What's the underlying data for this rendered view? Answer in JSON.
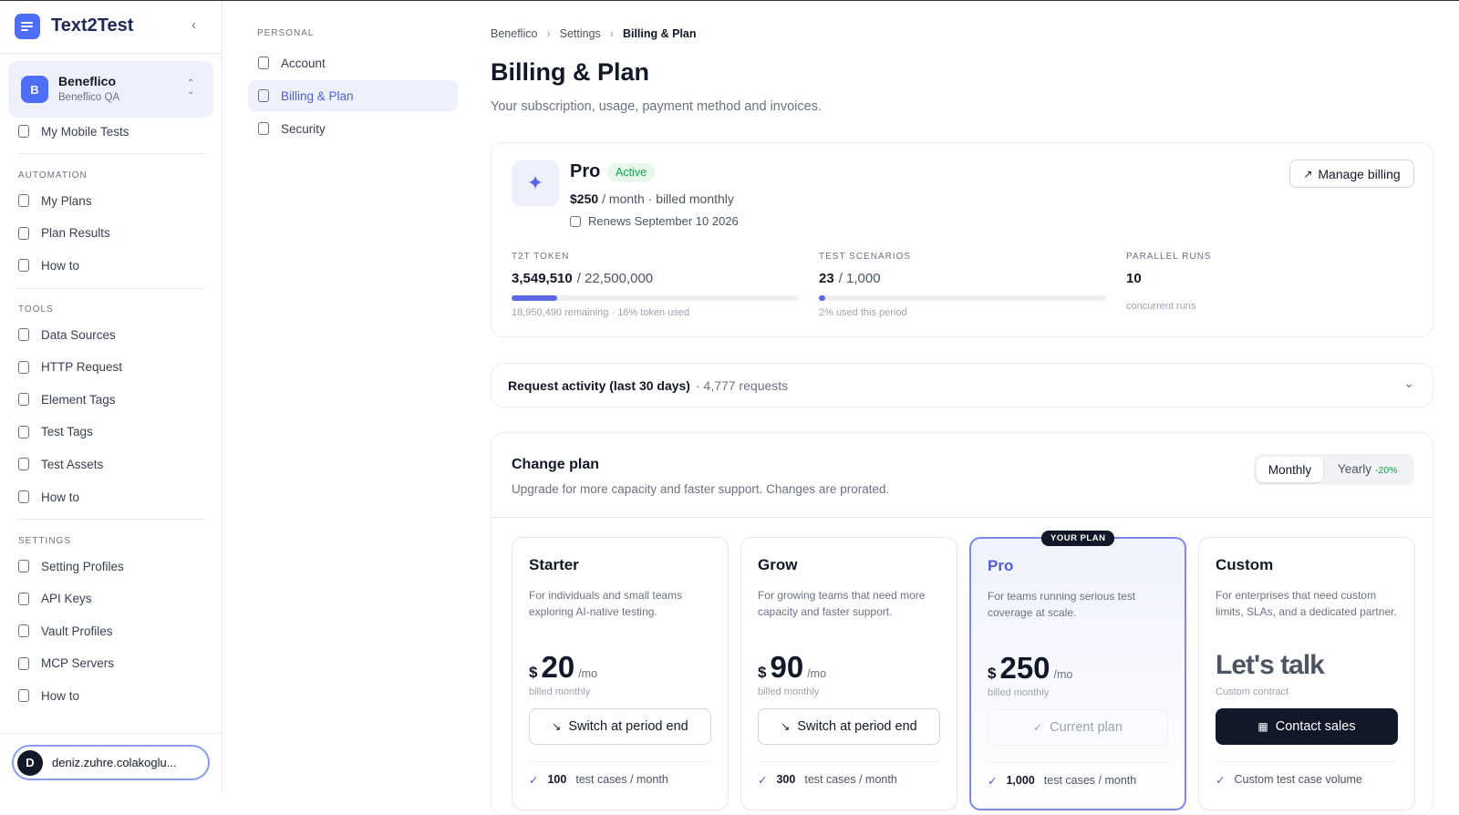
{
  "app": {
    "name": "Text2Test"
  },
  "workspace": {
    "initial": "B",
    "name": "Beneflico",
    "subtitle": "Beneflico QA"
  },
  "sidebar": {
    "top_item": "My Mobile Tests",
    "sections": [
      {
        "title": "AUTOMATION",
        "items": [
          "My Plans",
          "Plan Results",
          "How to"
        ]
      },
      {
        "title": "TOOLS",
        "items": [
          "Data Sources",
          "HTTP Request",
          "Element Tags",
          "Test Tags",
          "Test Assets",
          "How to"
        ]
      },
      {
        "title": "SETTINGS",
        "items": [
          "Setting Profiles",
          "API Keys",
          "Vault Profiles",
          "MCP Servers",
          "How to"
        ]
      }
    ]
  },
  "user": {
    "initial": "D",
    "name": "deniz.zuhre.colakoglu..."
  },
  "settings_nav": {
    "title": "PERSONAL",
    "items": [
      "Account",
      "Billing & Plan",
      "Security"
    ]
  },
  "breadcrumb": [
    "Beneflico",
    "Settings",
    "Billing & Plan"
  ],
  "header": {
    "title": "Billing & Plan",
    "subtitle": "Your subscription, usage, payment method and invoices."
  },
  "plan": {
    "name": "Pro",
    "status": "Active",
    "price": "$250",
    "price_suffix": "/ month · billed monthly",
    "renews": "Renews September 10 2026",
    "button": "Manage billing"
  },
  "usage": [
    {
      "label": "T2T TOKEN",
      "value": "3,549,510",
      "limit": "/ 22,500,000",
      "note": "18,950,490 remaining · 16% token used",
      "percent": 16
    },
    {
      "label": "TEST SCENARIOS",
      "value": "23",
      "limit": "/ 1,000",
      "note": "2% used this period",
      "percent": 2.3
    },
    {
      "label": "PARALLEL RUNS",
      "value": "10",
      "note": "concurrent runs"
    }
  ],
  "activity": {
    "title": "Request activity (last 30 days)",
    "count": "· 4,777 requests"
  },
  "change_plan": {
    "title": "Change plan",
    "subtitle": "Upgrade for more capacity and faster support. Changes are prorated.",
    "toggle": [
      "Monthly",
      "Yearly"
    ],
    "discount": "-20%",
    "badge": "YOUR PLAN",
    "plans": [
      {
        "name": "Starter",
        "description": "For individuals and small teams exploring AI-native testing.",
        "currency": "$",
        "price": "20",
        "unit": "/mo",
        "billing": "billed monthly",
        "button": "Switch at period end",
        "feature_count": "100",
        "feature": "test cases / month"
      },
      {
        "name": "Grow",
        "description": "For growing teams that need more capacity and faster support.",
        "currency": "$",
        "price": "90",
        "unit": "/mo",
        "billing": "billed monthly",
        "button": "Switch at period end",
        "feature_count": "300",
        "feature": "test cases / month"
      },
      {
        "name": "Pro",
        "description": "For teams running serious test coverage at scale.",
        "currency": "$",
        "price": "250",
        "unit": "/mo",
        "billing": "billed monthly",
        "button": "Current plan",
        "feature_count": "1,000",
        "feature": "test cases / month"
      },
      {
        "name": "Custom",
        "description": "For enterprises that need custom limits, SLAs, and a dedicated partner.",
        "price": "Let's talk",
        "billing": "Custom contract",
        "button": "Contact sales",
        "feature": "Custom test case volume"
      }
    ]
  }
}
